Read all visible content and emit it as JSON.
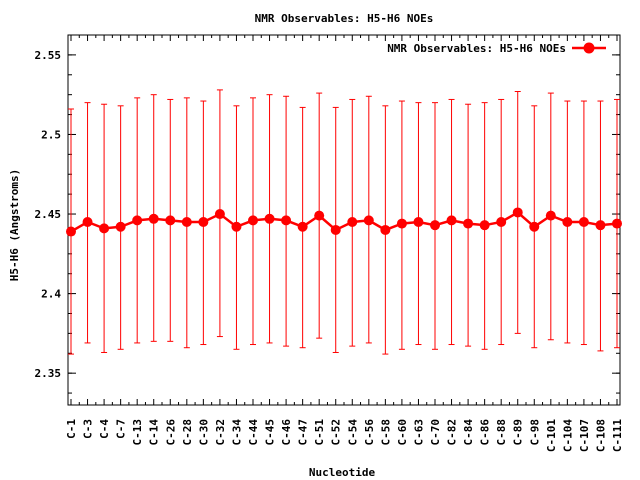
{
  "chart_data": {
    "type": "line",
    "title": "NMR Observables: H5-H6 NOEs",
    "xlabel": "Nucleotide",
    "ylabel": "H5-H6 (Angstroms)",
    "ylim": [
      2.33,
      2.5625
    ],
    "yticks": [
      2.35,
      2.4,
      2.45,
      2.5,
      2.55
    ],
    "ytick_labels": [
      "2.35",
      "2.4",
      "2.45",
      "2.5",
      "2.55"
    ],
    "grid": false,
    "legend_position": "top-right",
    "categories": [
      "C-1",
      "C-3",
      "C-4",
      "C-7",
      "C-13",
      "C-14",
      "C-26",
      "C-28",
      "C-30",
      "C-32",
      "C-34",
      "C-44",
      "C-45",
      "C-46",
      "C-47",
      "C-51",
      "C-52",
      "C-54",
      "C-56",
      "C-58",
      "C-60",
      "C-63",
      "C-70",
      "C-82",
      "C-84",
      "C-86",
      "C-88",
      "C-89",
      "C-98",
      "C-101",
      "C-104",
      "C-107",
      "C-108",
      "C-111"
    ],
    "series": [
      {
        "name": "NMR Observables: H5-H6 NOEs",
        "color": "#ff0000",
        "values": [
          2.439,
          2.445,
          2.441,
          2.442,
          2.446,
          2.447,
          2.446,
          2.445,
          2.445,
          2.45,
          2.442,
          2.446,
          2.447,
          2.446,
          2.442,
          2.449,
          2.44,
          2.445,
          2.446,
          2.44,
          2.444,
          2.445,
          2.443,
          2.446,
          2.444,
          2.443,
          2.445,
          2.451,
          2.442,
          2.449,
          2.445,
          2.445,
          2.443,
          2.444
        ],
        "error_low": [
          2.362,
          2.369,
          2.363,
          2.365,
          2.369,
          2.37,
          2.37,
          2.366,
          2.368,
          2.373,
          2.365,
          2.368,
          2.369,
          2.367,
          2.366,
          2.372,
          2.363,
          2.367,
          2.369,
          2.362,
          2.365,
          2.368,
          2.365,
          2.368,
          2.367,
          2.365,
          2.368,
          2.375,
          2.366,
          2.371,
          2.369,
          2.368,
          2.364,
          2.366
        ],
        "error_high": [
          2.516,
          2.52,
          2.519,
          2.518,
          2.523,
          2.525,
          2.522,
          2.523,
          2.521,
          2.528,
          2.518,
          2.523,
          2.525,
          2.524,
          2.517,
          2.526,
          2.517,
          2.522,
          2.524,
          2.518,
          2.521,
          2.52,
          2.52,
          2.522,
          2.519,
          2.52,
          2.522,
          2.527,
          2.518,
          2.526,
          2.521,
          2.521,
          2.521,
          2.522
        ]
      }
    ]
  }
}
